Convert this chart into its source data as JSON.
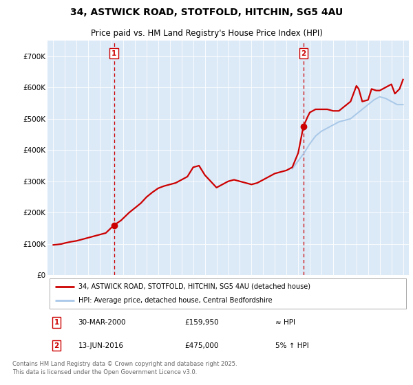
{
  "title1": "34, ASTWICK ROAD, STOTFOLD, HITCHIN, SG5 4AU",
  "title2": "Price paid vs. HM Land Registry's House Price Index (HPI)",
  "ylim": [
    0,
    750000
  ],
  "yticks": [
    0,
    100000,
    200000,
    300000,
    400000,
    500000,
    600000,
    700000
  ],
  "ytick_labels": [
    "£0",
    "£100K",
    "£200K",
    "£300K",
    "£400K",
    "£500K",
    "£600K",
    "£700K"
  ],
  "legend_line1": "34, ASTWICK ROAD, STOTFOLD, HITCHIN, SG5 4AU (detached house)",
  "legend_line2": "HPI: Average price, detached house, Central Bedfordshire",
  "annotation1_date": "30-MAR-2000",
  "annotation1_price": "£159,950",
  "annotation1_hpi": "≈ HPI",
  "annotation2_date": "13-JUN-2016",
  "annotation2_price": "£475,000",
  "annotation2_hpi": "5% ↑ HPI",
  "footnote": "Contains HM Land Registry data © Crown copyright and database right 2025.\nThis data is licensed under the Open Government Licence v3.0.",
  "marker1_x": 2000.2,
  "marker1_y": 159950,
  "marker2_x": 2016.45,
  "marker2_y": 475000,
  "hpi_line_color": "#a8c8e8",
  "sale_line_color": "#cc0000",
  "vline_color": "#cc0000",
  "plot_bg": "#dce9f7",
  "hpi_data_x": [
    2015.5,
    2016.0,
    2016.5,
    2017.0,
    2017.5,
    2018.0,
    2018.5,
    2019.0,
    2019.5,
    2020.0,
    2020.5,
    2021.0,
    2021.5,
    2022.0,
    2022.5,
    2023.0,
    2023.5,
    2024.0,
    2024.5,
    2025.0
  ],
  "hpi_data_y": [
    340000,
    365000,
    390000,
    420000,
    445000,
    460000,
    470000,
    480000,
    490000,
    495000,
    500000,
    515000,
    530000,
    545000,
    560000,
    570000,
    565000,
    555000,
    545000,
    545000
  ],
  "sale_data_x": [
    1995.0,
    1995.3,
    1995.7,
    1996.0,
    1996.5,
    1997.0,
    1997.5,
    1998.0,
    1998.5,
    1999.0,
    1999.5,
    2000.2,
    2000.8,
    2001.5,
    2002.0,
    2002.5,
    2003.0,
    2003.5,
    2004.0,
    2004.5,
    2005.0,
    2005.5,
    2006.0,
    2006.5,
    2007.0,
    2007.5,
    2008.0,
    2008.5,
    2009.0,
    2009.5,
    2010.0,
    2010.5,
    2011.0,
    2011.5,
    2012.0,
    2012.5,
    2013.0,
    2013.5,
    2014.0,
    2014.5,
    2015.0,
    2015.5,
    2016.0,
    2016.45,
    2016.8,
    2017.0,
    2017.5,
    2018.0,
    2018.5,
    2019.0,
    2019.5,
    2020.0,
    2020.5,
    2021.0,
    2021.2,
    2021.5,
    2022.0,
    2022.3,
    2022.7,
    2023.0,
    2023.5,
    2024.0,
    2024.3,
    2024.7,
    2025.0
  ],
  "sale_data_y": [
    97000,
    98000,
    100000,
    103000,
    107000,
    110000,
    115000,
    120000,
    125000,
    130000,
    135000,
    159950,
    175000,
    200000,
    215000,
    230000,
    250000,
    265000,
    278000,
    285000,
    290000,
    295000,
    305000,
    315000,
    345000,
    350000,
    320000,
    300000,
    280000,
    290000,
    300000,
    305000,
    300000,
    295000,
    290000,
    295000,
    305000,
    315000,
    325000,
    330000,
    335000,
    345000,
    390000,
    475000,
    505000,
    520000,
    530000,
    530000,
    530000,
    525000,
    525000,
    540000,
    555000,
    605000,
    595000,
    555000,
    560000,
    595000,
    590000,
    590000,
    600000,
    610000,
    580000,
    595000,
    625000
  ],
  "xlim": [
    1994.5,
    2025.5
  ],
  "xticks": [
    1995,
    1996,
    1997,
    1998,
    1999,
    2000,
    2001,
    2002,
    2003,
    2004,
    2005,
    2006,
    2007,
    2008,
    2009,
    2010,
    2011,
    2012,
    2013,
    2014,
    2015,
    2016,
    2017,
    2018,
    2019,
    2020,
    2021,
    2022,
    2023,
    2024,
    2025
  ]
}
